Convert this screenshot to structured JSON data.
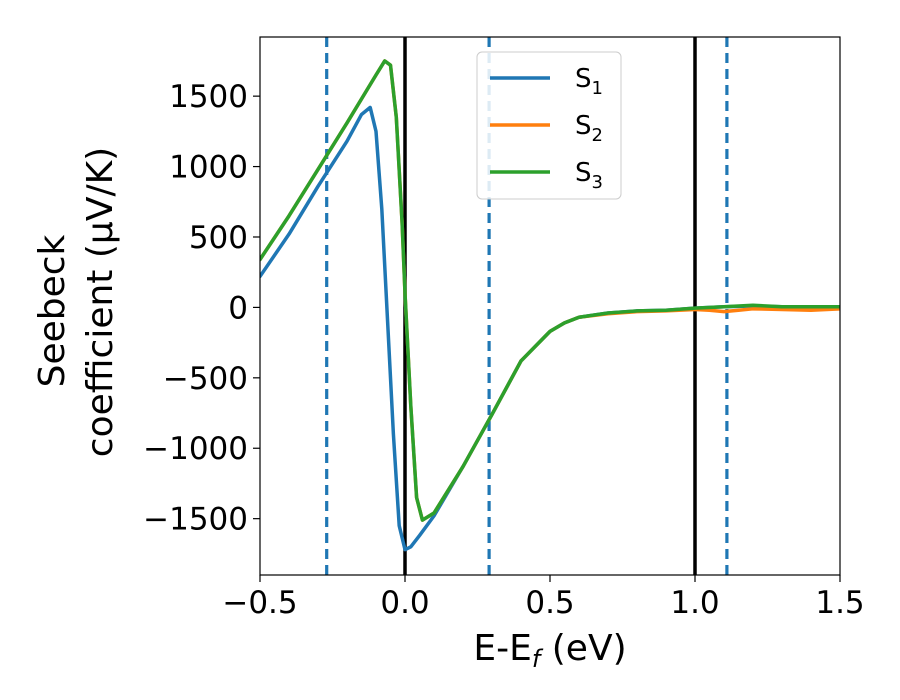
{
  "chart_data": {
    "type": "line",
    "xlabel": "E-E",
    "xlabel_sub": "f",
    "xlabel_unit": " (eV)",
    "ylabel_line1": "Seebeck",
    "ylabel_line2": "coefficient  (μV/K)",
    "xlim": [
      -0.5,
      1.5
    ],
    "ylim": [
      -1900,
      1920
    ],
    "xticks": [
      -0.5,
      0.0,
      0.5,
      1.0,
      1.5
    ],
    "xtick_labels": [
      "−0.5",
      "0.0",
      "0.5",
      "1.0",
      "1.5"
    ],
    "yticks": [
      -1500,
      -1000,
      -500,
      0,
      500,
      1000,
      1500
    ],
    "ytick_labels": [
      "−1500",
      "−1000",
      "−500",
      "0",
      "500",
      "1000",
      "1500"
    ],
    "grid": false,
    "legend": {
      "placement": "upper-center",
      "entries": [
        {
          "base": "S",
          "sub": "1",
          "color": "#1f77b4"
        },
        {
          "base": "S",
          "sub": "2",
          "color": "#ff7f0e"
        },
        {
          "base": "S",
          "sub": "3",
          "color": "#2ca02c"
        }
      ]
    },
    "vertical_lines": [
      {
        "x": -0.27,
        "style": "dashed",
        "color": "#1f77b4"
      },
      {
        "x": 0.0,
        "style": "solid",
        "color": "#000000"
      },
      {
        "x": 0.29,
        "style": "dashed",
        "color": "#1f77b4"
      },
      {
        "x": 1.0,
        "style": "solid",
        "color": "#000000"
      },
      {
        "x": 1.11,
        "style": "dashed",
        "color": "#1f77b4"
      }
    ],
    "series": [
      {
        "name": "S1",
        "color": "#1f77b4",
        "x": [
          -0.5,
          -0.4,
          -0.3,
          -0.2,
          -0.15,
          -0.12,
          -0.1,
          -0.08,
          -0.06,
          -0.04,
          -0.02,
          0.0,
          0.02,
          0.05,
          0.1,
          0.2,
          0.3,
          0.4,
          0.5,
          0.55,
          0.6,
          0.7,
          0.8,
          0.9,
          1.0,
          1.1,
          1.2,
          1.3,
          1.4,
          1.5
        ],
        "y": [
          220,
          520,
          860,
          1180,
          1370,
          1420,
          1250,
          700,
          -100,
          -900,
          -1550,
          -1720,
          -1700,
          -1620,
          -1480,
          -1130,
          -760,
          -380,
          -170,
          -110,
          -70,
          -40,
          -25,
          -20,
          -5,
          5,
          10,
          5,
          5,
          5
        ]
      },
      {
        "name": "S2",
        "color": "#ff7f0e",
        "x": [
          -0.5,
          -0.4,
          -0.3,
          -0.2,
          -0.1,
          -0.07,
          -0.05,
          -0.03,
          -0.01,
          0.0,
          0.02,
          0.04,
          0.06,
          0.1,
          0.2,
          0.3,
          0.4,
          0.5,
          0.55,
          0.6,
          0.7,
          0.8,
          0.9,
          1.0,
          1.05,
          1.1,
          1.15,
          1.2,
          1.3,
          1.4,
          1.5
        ],
        "y": [
          340,
          650,
          980,
          1310,
          1650,
          1750,
          1720,
          1350,
          600,
          100,
          -700,
          -1350,
          -1510,
          -1460,
          -1130,
          -760,
          -380,
          -170,
          -110,
          -70,
          -45,
          -30,
          -25,
          -15,
          -20,
          -30,
          -20,
          -10,
          -15,
          -20,
          -10
        ]
      },
      {
        "name": "S3",
        "color": "#2ca02c",
        "x": [
          -0.5,
          -0.4,
          -0.3,
          -0.2,
          -0.1,
          -0.07,
          -0.05,
          -0.03,
          -0.01,
          0.0,
          0.02,
          0.04,
          0.06,
          0.1,
          0.2,
          0.3,
          0.4,
          0.5,
          0.55,
          0.6,
          0.7,
          0.8,
          0.9,
          1.0,
          1.1,
          1.2,
          1.3,
          1.4,
          1.5
        ],
        "y": [
          340,
          650,
          980,
          1310,
          1650,
          1750,
          1720,
          1350,
          600,
          100,
          -700,
          -1350,
          -1510,
          -1460,
          -1130,
          -760,
          -380,
          -170,
          -110,
          -70,
          -40,
          -25,
          -20,
          -5,
          5,
          15,
          5,
          5,
          5
        ]
      }
    ]
  }
}
